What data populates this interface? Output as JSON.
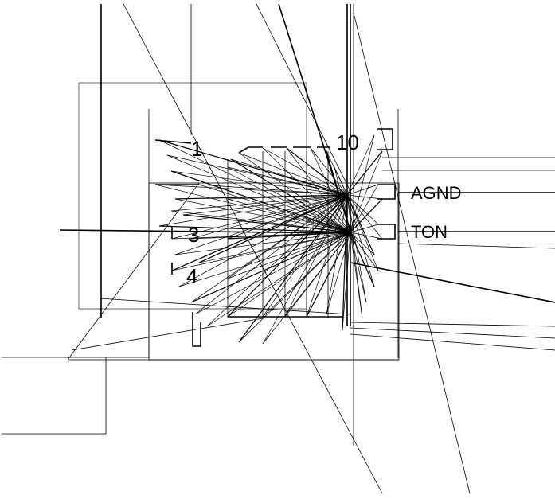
{
  "labels": {
    "pin_agnd": "AGND",
    "pin_ton": "TON",
    "pin_number_10": "10",
    "pin_number_1": "1",
    "pin_number_3": "3",
    "pin_number_4": "4"
  }
}
